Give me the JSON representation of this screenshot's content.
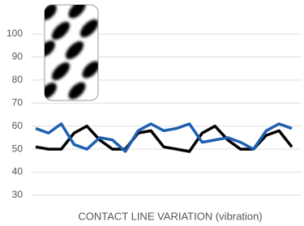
{
  "chart_data": {
    "type": "line",
    "x_label": "CONTACT LINE VARIATION (vibration)",
    "categories": [
      null,
      null,
      null,
      null,
      null,
      null,
      null,
      null,
      null,
      null,
      null,
      null,
      null,
      null,
      null,
      null,
      null,
      null,
      null,
      null,
      null
    ],
    "series": [
      {
        "color": "#000000",
        "values": [
          51,
          50,
          50,
          57,
          60,
          54,
          50,
          50,
          57,
          58,
          51,
          50,
          49,
          57,
          60,
          54,
          50,
          50,
          56,
          58,
          51
        ]
      },
      {
        "color": "#1f5fb0",
        "values": [
          59,
          57,
          61,
          52,
          50,
          55,
          54,
          49,
          58,
          61,
          58,
          59,
          61,
          53,
          54,
          55,
          53,
          50,
          58,
          61,
          59
        ]
      }
    ],
    "ylim": [
      30,
      100
    ],
    "yticks": [
      30,
      40,
      50,
      60,
      70,
      80,
      90,
      100
    ],
    "grid": true
  }
}
